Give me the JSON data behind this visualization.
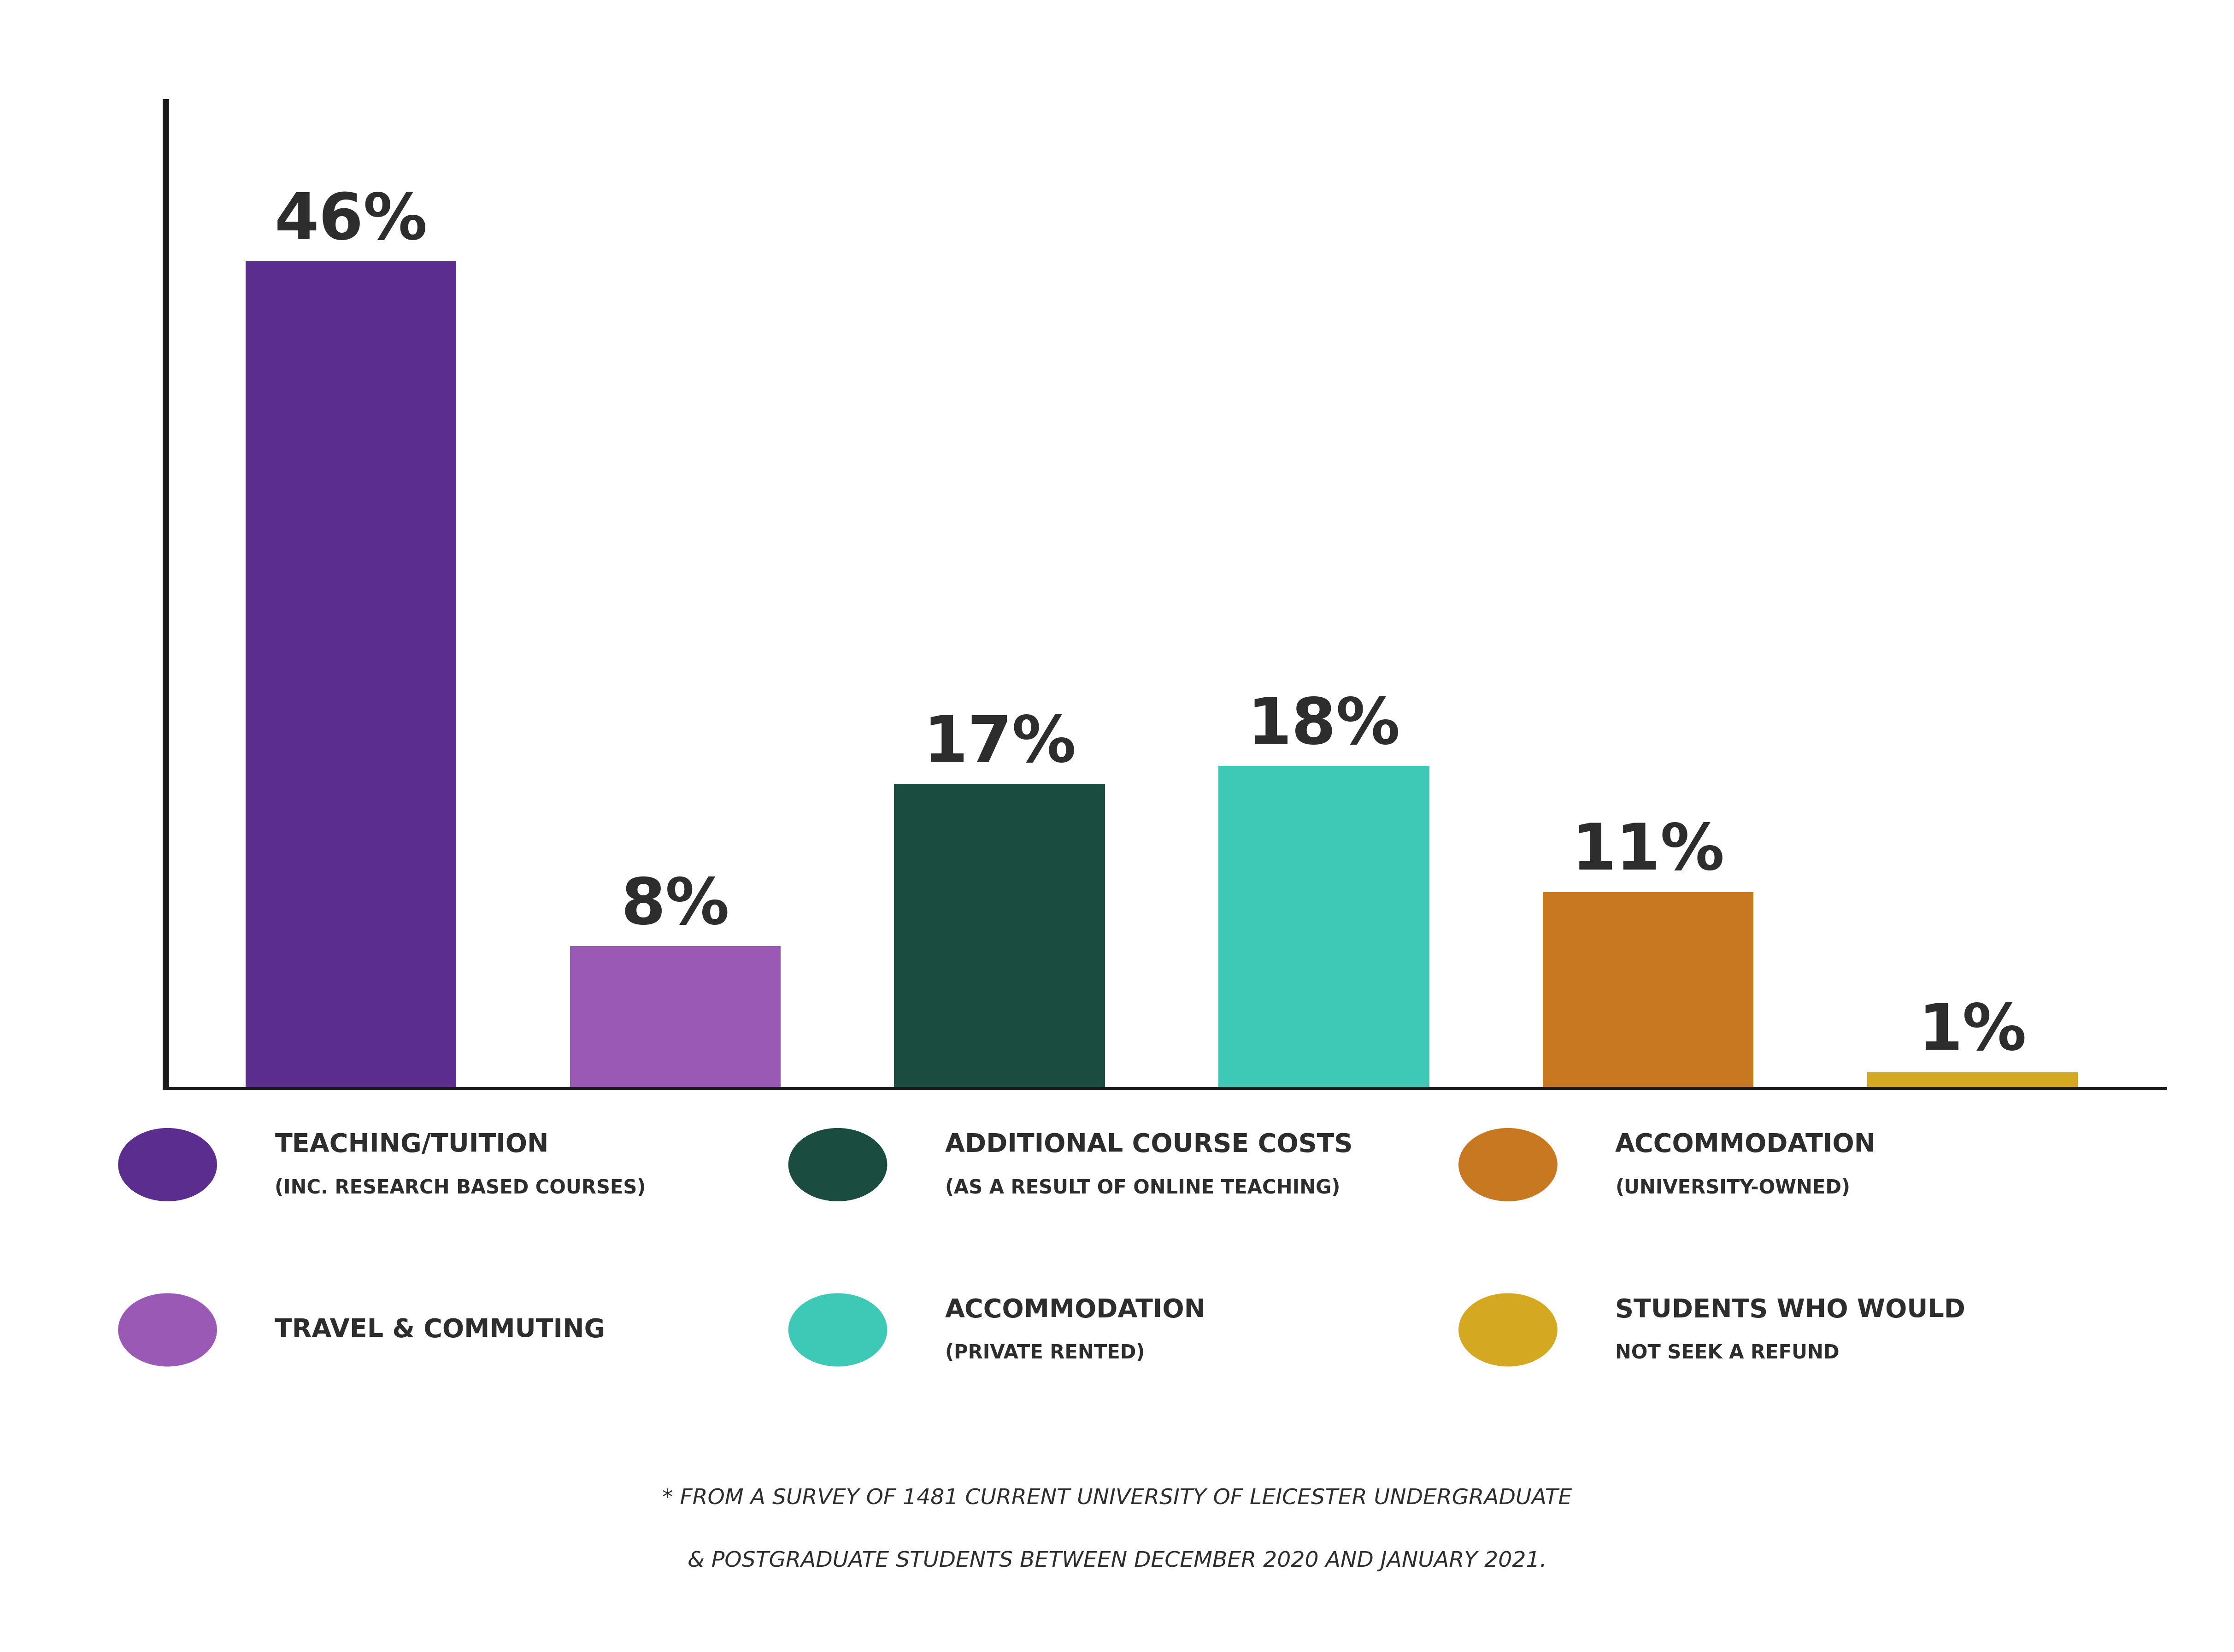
{
  "values": [
    46,
    8,
    17,
    18,
    11,
    1
  ],
  "labels": [
    "46%",
    "8%",
    "17%",
    "18%",
    "11%",
    "1%"
  ],
  "bar_colors": [
    "#5B2D8E",
    "#9B59B6",
    "#1A4D40",
    "#3EC9B6",
    "#C87820",
    "#D4A820"
  ],
  "background_color": "#FFFFFF",
  "text_color": "#2D2D2D",
  "ylim": [
    0,
    55
  ],
  "legend_items": [
    {
      "color": "#5B2D8E",
      "label1": "TEACHING/TUITION",
      "label2": "(INC. RESEARCH BASED COURSES)"
    },
    {
      "color": "#1A4D40",
      "label1": "ADDITIONAL COURSE COSTS",
      "label2": "(AS A RESULT OF ONLINE TEACHING)"
    },
    {
      "color": "#C87820",
      "label1": "ACCOMMODATION",
      "label2": "(UNIVERSITY-OWNED)"
    },
    {
      "color": "#9B59B6",
      "label1": "TRAVEL & COMMUTING",
      "label2": ""
    },
    {
      "color": "#3EC9B6",
      "label1": "ACCOMMODATION",
      "label2": "(PRIVATE RENTED)"
    },
    {
      "color": "#D4A820",
      "label1": "STUDENTS WHO WOULD",
      "label2": "NOT SEEK A REFUND"
    }
  ],
  "footnote_line1": "* FROM A SURVEY OF 1481 CURRENT UNIVERSITY OF LEICESTER UNDERGRADUATE",
  "footnote_line2": "& POSTGRADUATE STUDENTS BETWEEN DECEMBER 2020 AND JANUARY 2021."
}
